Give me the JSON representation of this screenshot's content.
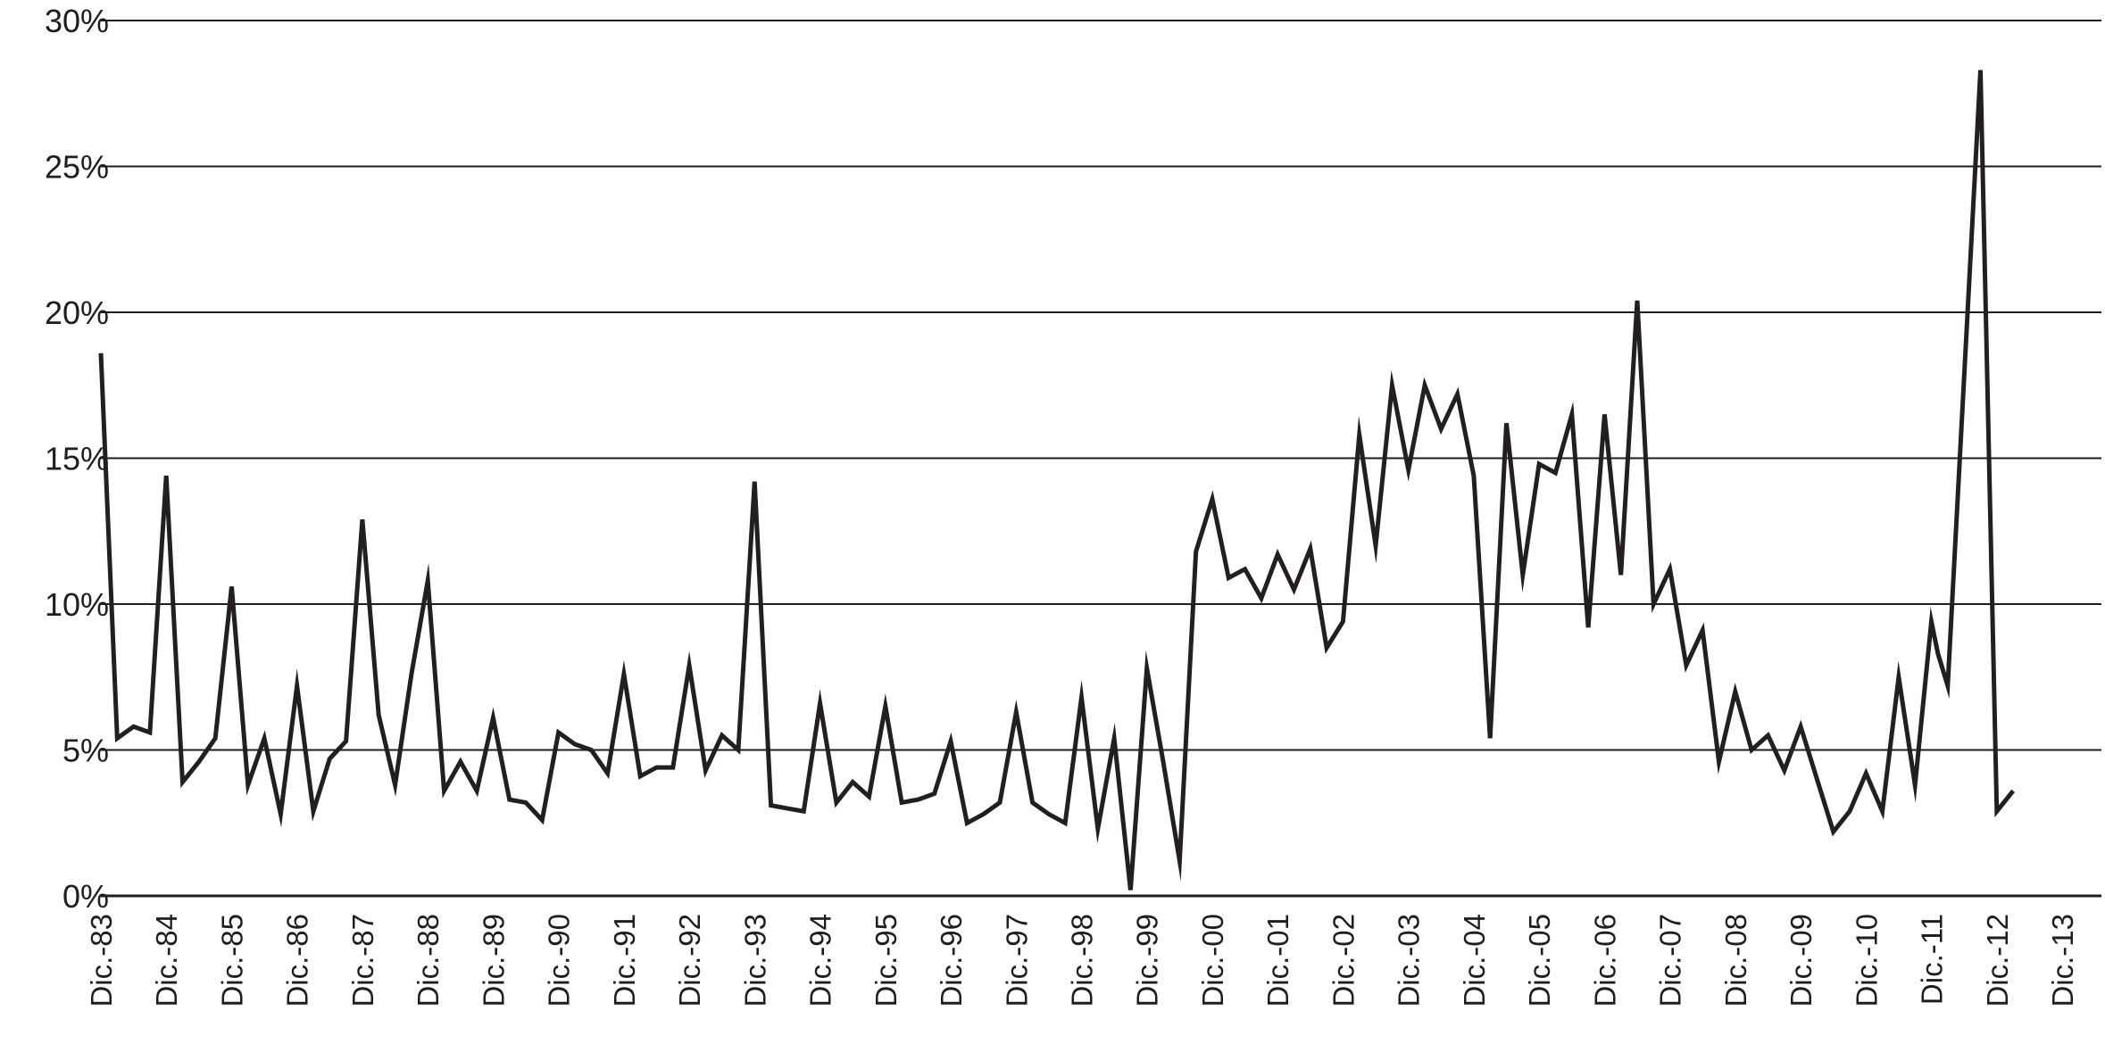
{
  "chart_data": {
    "type": "line",
    "title": "",
    "xlabel": "",
    "ylabel": "",
    "y_unit": "%",
    "ylim": [
      0,
      30
    ],
    "y_ticks": [
      "0%",
      "5%",
      "10%",
      "15%",
      "20%",
      "25%",
      "30%"
    ],
    "y_tick_values": [
      0,
      5,
      10,
      15,
      20,
      25,
      30
    ],
    "grid": true,
    "legend": "none",
    "x_tick_labels": [
      "Dic.-83",
      "Dic.-84",
      "Dic.-85",
      "Dic.-86",
      "Dic.-87",
      "Dic.-88",
      "Dic.-89",
      "Dic.-90",
      "Dic.-91",
      "Dic.-92",
      "Dic.-93",
      "Dic.-94",
      "Dic.-95",
      "Dic.-96",
      "Dic.-97",
      "Dic.-98",
      "Dic.-99",
      "Dic.-00",
      "Dic.-01",
      "Dic.-02",
      "Dic.-03",
      "Dic.-04",
      "Dic.-05",
      "Dic.-06",
      "Dic.-07",
      "Dic.-08",
      "Dic.-09",
      "Dic.-10",
      "Dic.-11",
      "Dic.-12",
      "Dic.-13"
    ],
    "line_color": "#231f20",
    "series": [
      {
        "values": [
          [
            1983.0,
            18.6
          ],
          [
            1983.25,
            5.4
          ],
          [
            1983.5,
            5.8
          ],
          [
            1983.75,
            5.6
          ],
          [
            1984.0,
            14.4
          ],
          [
            1984.25,
            3.9
          ],
          [
            1984.5,
            4.6
          ],
          [
            1984.75,
            5.4
          ],
          [
            1985.0,
            10.6
          ],
          [
            1985.25,
            3.8
          ],
          [
            1985.5,
            5.4
          ],
          [
            1985.75,
            2.8
          ],
          [
            1986.0,
            7.2
          ],
          [
            1986.25,
            2.9
          ],
          [
            1986.5,
            4.7
          ],
          [
            1986.75,
            5.3
          ],
          [
            1987.0,
            12.9
          ],
          [
            1987.25,
            6.2
          ],
          [
            1987.5,
            3.8
          ],
          [
            1987.75,
            7.6
          ],
          [
            1988.0,
            10.8
          ],
          [
            1988.25,
            3.6
          ],
          [
            1988.5,
            4.6
          ],
          [
            1988.75,
            3.6
          ],
          [
            1989.0,
            6.1
          ],
          [
            1989.25,
            3.3
          ],
          [
            1989.5,
            3.2
          ],
          [
            1989.75,
            2.6
          ],
          [
            1990.0,
            5.6
          ],
          [
            1990.25,
            5.2
          ],
          [
            1990.5,
            5.0
          ],
          [
            1990.75,
            4.2
          ],
          [
            1991.0,
            7.6
          ],
          [
            1991.25,
            4.1
          ],
          [
            1991.5,
            4.4
          ],
          [
            1991.75,
            4.4
          ],
          [
            1992.0,
            7.9
          ],
          [
            1992.25,
            4.3
          ],
          [
            1992.5,
            5.5
          ],
          [
            1992.75,
            5.0
          ],
          [
            1993.0,
            14.2
          ],
          [
            1993.25,
            3.1
          ],
          [
            1993.5,
            3.0
          ],
          [
            1993.75,
            2.9
          ],
          [
            1994.0,
            6.6
          ],
          [
            1994.25,
            3.2
          ],
          [
            1994.5,
            3.9
          ],
          [
            1994.75,
            3.4
          ],
          [
            1995.0,
            6.5
          ],
          [
            1995.25,
            3.2
          ],
          [
            1995.5,
            3.3
          ],
          [
            1995.75,
            3.5
          ],
          [
            1996.0,
            5.3
          ],
          [
            1996.25,
            2.5
          ],
          [
            1996.5,
            2.8
          ],
          [
            1996.75,
            3.2
          ],
          [
            1997.0,
            6.3
          ],
          [
            1997.25,
            3.2
          ],
          [
            1997.5,
            2.8
          ],
          [
            1997.75,
            2.5
          ],
          [
            1998.0,
            6.8
          ],
          [
            1998.25,
            2.3
          ],
          [
            1998.5,
            5.4
          ],
          [
            1998.75,
            0.2
          ],
          [
            1999.0,
            7.8
          ],
          [
            1999.25,
            4.6
          ],
          [
            1999.5,
            1.2
          ],
          [
            1999.75,
            11.8
          ],
          [
            2000.0,
            13.6
          ],
          [
            2000.25,
            10.9
          ],
          [
            2000.5,
            11.2
          ],
          [
            2000.75,
            10.2
          ],
          [
            2001.0,
            11.7
          ],
          [
            2001.25,
            10.5
          ],
          [
            2001.5,
            11.9
          ],
          [
            2001.75,
            8.5
          ],
          [
            2002.0,
            9.4
          ],
          [
            2002.25,
            15.8
          ],
          [
            2002.5,
            12.0
          ],
          [
            2002.75,
            17.5
          ],
          [
            2003.0,
            14.6
          ],
          [
            2003.25,
            17.5
          ],
          [
            2003.5,
            16.0
          ],
          [
            2003.75,
            17.2
          ],
          [
            2004.0,
            14.4
          ],
          [
            2004.25,
            5.4
          ],
          [
            2004.5,
            16.2
          ],
          [
            2004.75,
            11.0
          ],
          [
            2005.0,
            14.8
          ],
          [
            2005.25,
            14.5
          ],
          [
            2005.5,
            16.5
          ],
          [
            2005.75,
            9.2
          ],
          [
            2006.0,
            16.5
          ],
          [
            2006.25,
            11.0
          ],
          [
            2006.5,
            20.4
          ],
          [
            2006.75,
            10.0
          ],
          [
            2007.0,
            11.2
          ],
          [
            2007.25,
            7.9
          ],
          [
            2007.5,
            9.1
          ],
          [
            2007.75,
            4.6
          ],
          [
            2008.0,
            7.0
          ],
          [
            2008.25,
            5.0
          ],
          [
            2008.5,
            5.5
          ],
          [
            2008.75,
            4.3
          ],
          [
            2009.0,
            5.8
          ],
          [
            2009.25,
            4.0
          ],
          [
            2009.5,
            2.2
          ],
          [
            2009.75,
            2.9
          ],
          [
            2010.0,
            4.2
          ],
          [
            2010.25,
            2.9
          ],
          [
            2010.5,
            7.5
          ],
          [
            2010.75,
            3.8
          ],
          [
            2011.0,
            9.4
          ],
          [
            2011.1,
            8.3
          ],
          [
            2011.25,
            7.2
          ],
          [
            2011.75,
            28.3
          ],
          [
            2012.0,
            2.9
          ],
          [
            2012.25,
            3.6
          ]
        ]
      }
    ]
  }
}
